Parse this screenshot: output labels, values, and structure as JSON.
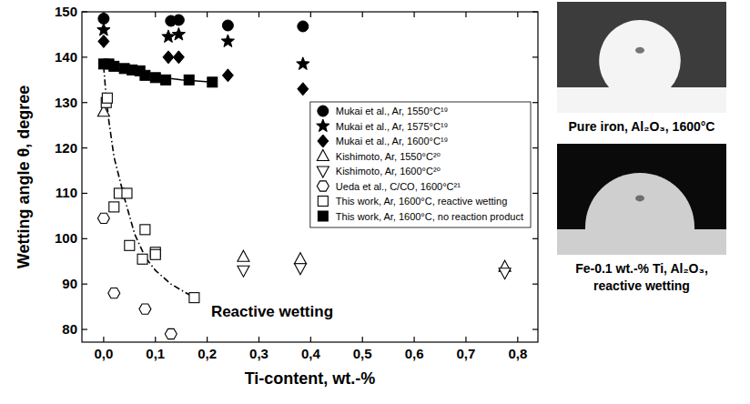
{
  "chart_data": {
    "type": "scatter",
    "x_label": "Ti-content, wt.-%",
    "y_label": "Wetting angle θ, degree",
    "xlim": [
      -0.042,
      0.839
    ],
    "ylim": [
      77.2,
      150
    ],
    "xticks": [
      {
        "value": 0,
        "label": "0,0"
      },
      {
        "value": 0.1,
        "label": "0,1"
      },
      {
        "value": 0.2,
        "label": "0,2"
      },
      {
        "value": 0.3,
        "label": "0,3"
      },
      {
        "value": 0.4,
        "label": "0,4"
      },
      {
        "value": 0.5,
        "label": "0,5"
      },
      {
        "value": 0.6,
        "label": "0,6"
      },
      {
        "value": 0.7,
        "label": "0,7"
      },
      {
        "value": 0.8,
        "label": "0,8"
      }
    ],
    "yticks": [
      80,
      90,
      100,
      110,
      120,
      130,
      140,
      150
    ],
    "grid": false,
    "legend": "right",
    "series": [
      {
        "name": "Mukai et al., Ar, 1550°C¹⁹",
        "type": "scatter",
        "marker": "circle",
        "color": "#000000",
        "x": [
          0,
          0.13,
          0.145,
          0.24,
          0.385
        ],
        "values": [
          148.5,
          148,
          148.2,
          147,
          146.8
        ]
      },
      {
        "name": "Mukai et al., Ar, 1575°C¹⁹",
        "type": "scatter",
        "marker": "star",
        "color": "#000000",
        "x": [
          0,
          0.125,
          0.145,
          0.24,
          0.385
        ],
        "values": [
          146,
          144.5,
          145,
          143.5,
          138.5
        ]
      },
      {
        "name": "Mukai et al., Ar, 1600°C¹⁹",
        "type": "scatter",
        "marker": "diamond",
        "color": "#000000",
        "x": [
          0,
          0.125,
          0.145,
          0.24,
          0.385
        ],
        "values": [
          143.5,
          140,
          140,
          136,
          133
        ]
      },
      {
        "name": "Kishimoto, Ar, 1550°C²⁰",
        "type": "scatter",
        "marker": "triangle-up-open",
        "color": "#000000",
        "x": [
          0,
          0.27,
          0.38,
          0.775
        ],
        "values": [
          128,
          96,
          95.5,
          93.8
        ]
      },
      {
        "name": "Kishimoto, Ar, 1600°C²⁰",
        "type": "scatter",
        "marker": "triangle-down-open",
        "color": "#000000",
        "x": [
          0.27,
          0.38,
          0.775
        ],
        "values": [
          93,
          93.5,
          92.5
        ]
      },
      {
        "name": "Ueda et al., C/CO, 1600°C²¹",
        "type": "scatter",
        "marker": "hexagon-open",
        "color": "#000000",
        "x": [
          0,
          0.02,
          0.08,
          0.13
        ],
        "values": [
          104.5,
          88,
          84.5,
          79
        ]
      },
      {
        "name": "This work, Ar, 1600°C, reactive wetting",
        "type": "scatter",
        "marker": "square-open",
        "color": "#000000",
        "x": [
          0.005,
          0.007,
          0.02,
          0.03,
          0.045,
          0.05,
          0.075,
          0.08,
          0.1,
          0.1,
          0.175
        ],
        "values": [
          130,
          131,
          107,
          110,
          110,
          98.5,
          95.5,
          102,
          97,
          96.5,
          87
        ]
      },
      {
        "name": "This work, Ar, 1600°C, no reaction product",
        "type": "scatter",
        "marker": "square",
        "color": "#000000",
        "x": [
          0,
          0.01,
          0.02,
          0.04,
          0.055,
          0.07,
          0.08,
          0.1,
          0.12,
          0.165,
          0.21
        ],
        "values": [
          138.5,
          138.5,
          138,
          137.5,
          137.2,
          137,
          136,
          135.5,
          135,
          135,
          134.5
        ]
      },
      {
        "type": "line",
        "line_style": "solid",
        "color": "#000000",
        "x": [
          0,
          0.01,
          0.03,
          0.06,
          0.1,
          0.15,
          0.21
        ],
        "values": [
          138.8,
          138,
          137.3,
          136.6,
          135.7,
          135,
          134.5
        ]
      },
      {
        "type": "line",
        "line_style": "dashdot",
        "color": "#000000",
        "x": [
          0,
          0.005,
          0.01,
          0.02,
          0.04,
          0.06,
          0.08,
          0.1,
          0.13,
          0.175
        ],
        "values": [
          138,
          131,
          126,
          118,
          109,
          101,
          96,
          93,
          90,
          87
        ]
      }
    ],
    "annotations": [
      {
        "text": "Reactive wetting"
      }
    ]
  },
  "images": [
    {
      "caption": [
        "Pure iron, Al₂O₃, 1600°C"
      ]
    },
    {
      "caption": [
        "Fe-0.1 wt.-% Ti, Al₂O₃,",
        "reactive wetting"
      ]
    }
  ]
}
